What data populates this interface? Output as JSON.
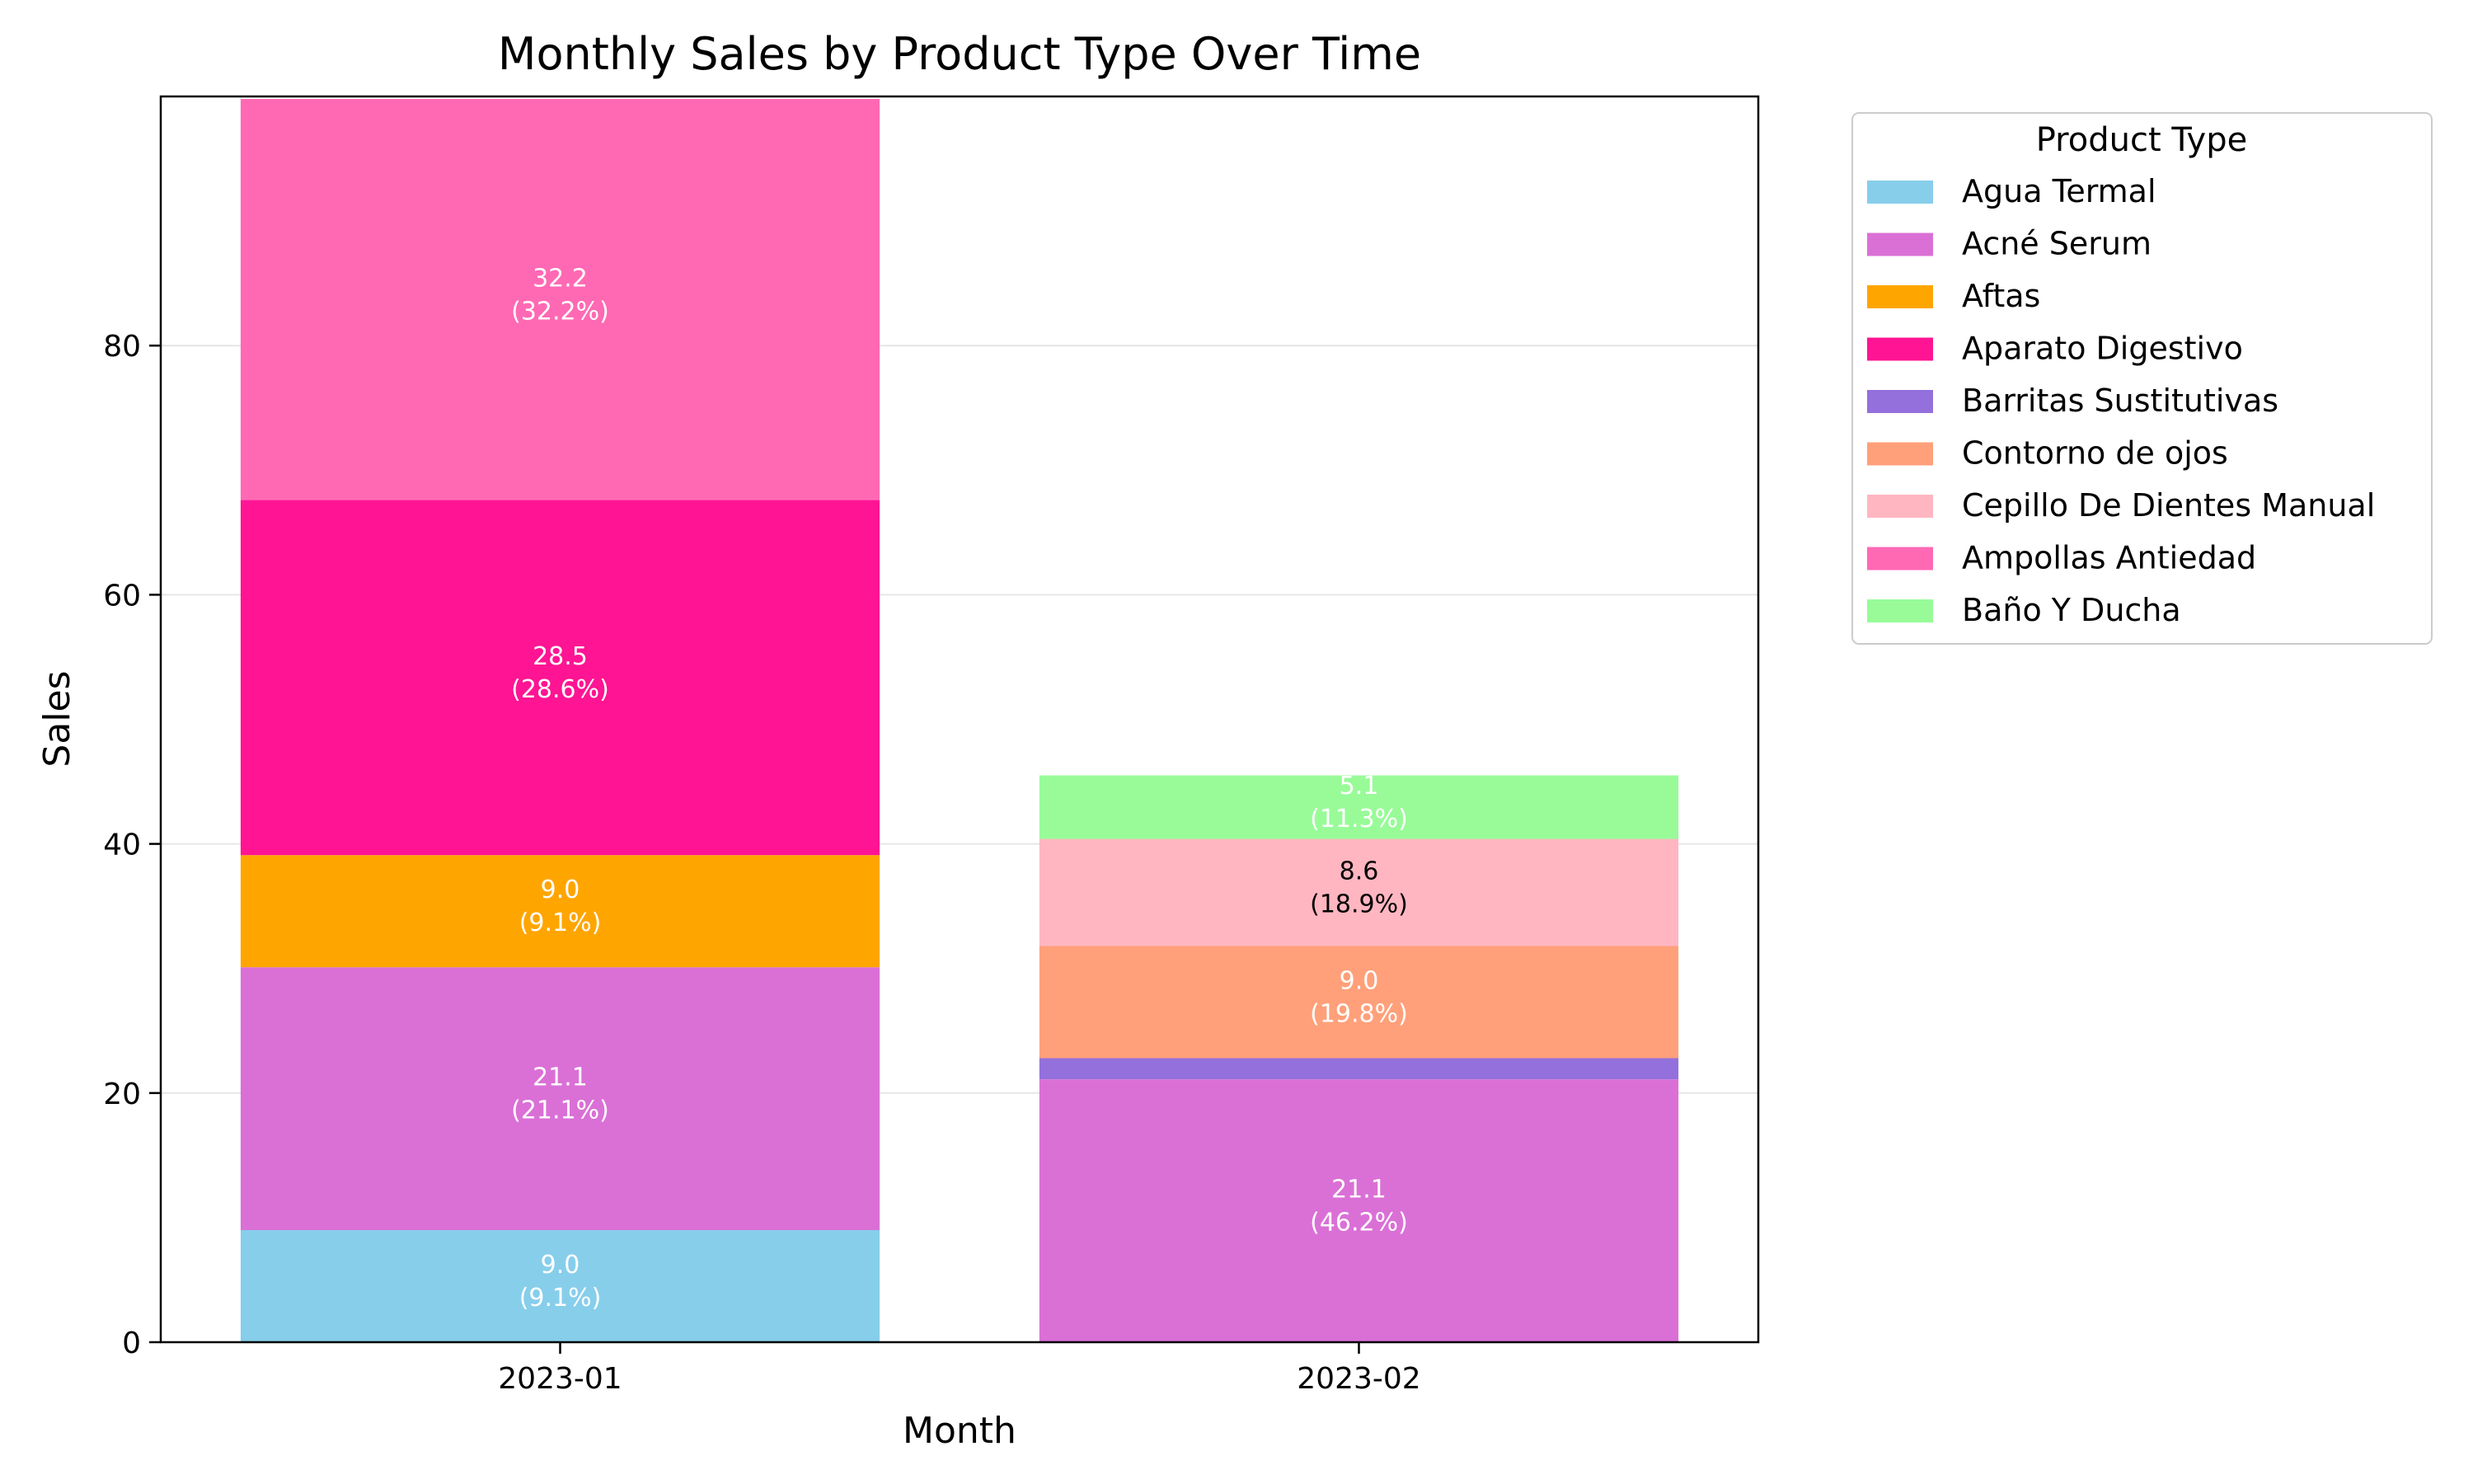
{
  "chart_data": {
    "type": "bar",
    "stacked": true,
    "title": "Monthly Sales by Product Type Over Time",
    "xlabel": "Month",
    "ylabel": "Sales",
    "ylim": [
      0,
      100
    ],
    "yticks": [
      "0",
      "20",
      "40",
      "60",
      "80"
    ],
    "grid": "horizontal",
    "legend": {
      "title": "Product Type",
      "placement": "outside-right"
    },
    "categories": [
      "2023-01",
      "2023-02"
    ],
    "series": [
      {
        "name": "Agua Termal",
        "color": "#87CEEB",
        "values": [
          9.0,
          0
        ],
        "labels": [
          "9.0\n(9.1%)",
          ""
        ],
        "label_color": "#ffffff"
      },
      {
        "name": "Acné Serum",
        "color": "#DA70D6",
        "values": [
          21.1,
          21.1
        ],
        "labels": [
          "21.1\n(21.1%)",
          "21.1\n(46.2%)"
        ],
        "label_color": "#ffffff"
      },
      {
        "name": "Aftas",
        "color": "#FFA500",
        "values": [
          9.0,
          0
        ],
        "labels": [
          "9.0\n(9.1%)",
          ""
        ],
        "label_color": "#ffffff"
      },
      {
        "name": "Aparato Digestivo",
        "color": "#FF1493",
        "values": [
          28.5,
          0
        ],
        "labels": [
          "28.5\n(28.6%)",
          ""
        ],
        "label_color": "#ffffff"
      },
      {
        "name": "Barritas Sustitutivas",
        "color": "#9370DB",
        "values": [
          0,
          1.7
        ],
        "labels": [
          "",
          ""
        ],
        "label_color": "#ffffff"
      },
      {
        "name": "Contorno de ojos",
        "color": "#FFA07A",
        "values": [
          0,
          9.0
        ],
        "labels": [
          "",
          "9.0\n(19.8%)"
        ],
        "label_color": "#ffffff"
      },
      {
        "name": "Cepillo De Dientes Manual",
        "color": "#FFB6C1",
        "values": [
          0,
          8.6
        ],
        "labels": [
          "",
          "8.6\n(18.9%)"
        ],
        "label_color": "#000000"
      },
      {
        "name": "Ampollas Antiedad",
        "color": "#FF69B4",
        "values": [
          32.2,
          0
        ],
        "labels": [
          "32.2\n(32.2%)",
          ""
        ],
        "label_color": "#ffffff"
      },
      {
        "name": "Baño Y Ducha",
        "color": "#98FB98",
        "values": [
          0,
          5.1
        ],
        "labels": [
          "",
          "5.1\n(11.3%)"
        ],
        "label_color": "#ffffff"
      }
    ]
  }
}
